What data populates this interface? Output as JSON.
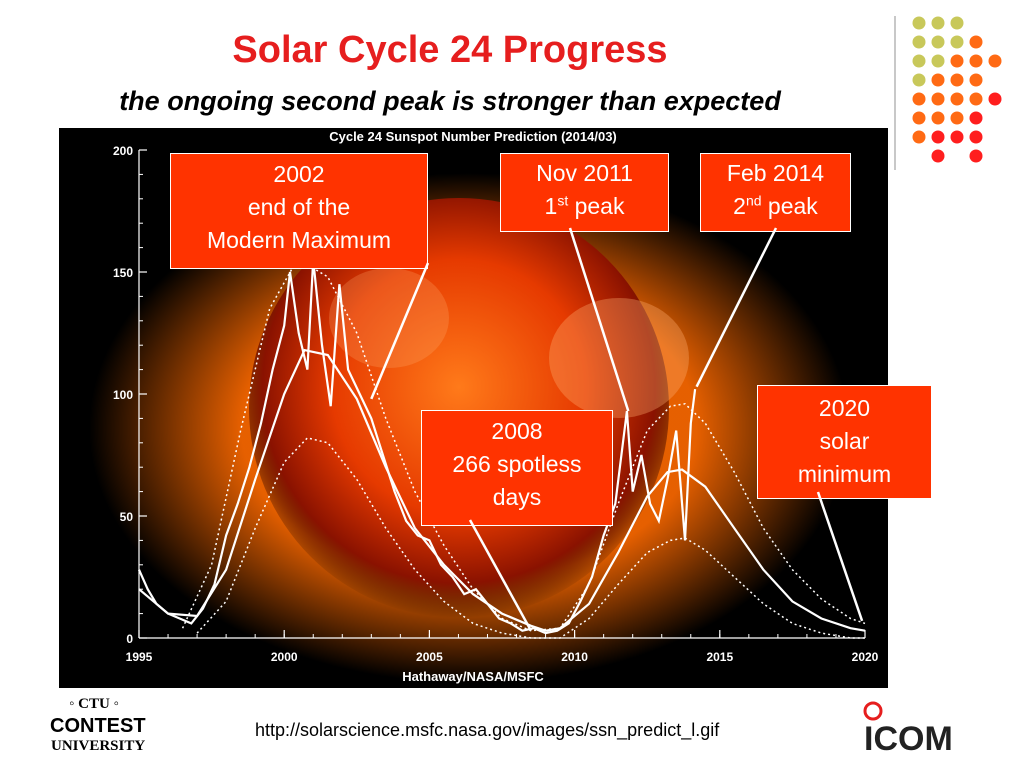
{
  "slide": {
    "title": "Solar Cycle 24 Progress",
    "subtitle": "the ongoing second peak is stronger than expected",
    "source_url": "http://solarscience.msfc.nasa.gov/images/ssn_predict_l.gif"
  },
  "callouts": {
    "c2002": {
      "line1": "2002",
      "line2": "end of the",
      "line3": "Modern Maximum"
    },
    "c2011": {
      "line1": "Nov 2011",
      "line2_pre": "1",
      "line2_sup": "st",
      "line2_post": " peak"
    },
    "c2014": {
      "line1": "Feb 2014",
      "line2_pre": "2",
      "line2_sup": "nd",
      "line2_post": " peak"
    },
    "c2008": {
      "line1": "2008",
      "line2": "266 spotless",
      "line3": "days"
    },
    "c2020": {
      "line1": "2020",
      "line2": "solar",
      "line3": "minimum"
    }
  },
  "logos": {
    "ctu_top": "◦ CTU ◦",
    "ctu_mid": "CONTEST",
    "ctu_bottom": "UNIVERSITY",
    "icom": "ICOM"
  },
  "colors": {
    "title": "#e61e1e",
    "callout": "#ff3300",
    "dot_olive": "#c8c85a",
    "dot_orange": "#ff6a14",
    "dot_red": "#ff1e1e"
  },
  "chart_data": {
    "type": "line",
    "title": "Cycle 24 Sunspot Number Prediction (2014/03)",
    "credit": "Hathaway/NASA/MSFC",
    "xlim": [
      1995,
      2020
    ],
    "ylim": [
      0,
      200
    ],
    "x_ticks": [
      1995,
      2000,
      2005,
      2010,
      2015,
      2020
    ],
    "y_ticks": [
      0,
      50,
      100,
      150,
      200
    ],
    "series": [
      {
        "style": "noisy-solid",
        "x": [
          1995.0,
          1995.3,
          1995.6,
          1996.0,
          1996.4,
          1996.8,
          1997.2,
          1997.6,
          1998.0,
          1998.4,
          1998.8,
          1999.2,
          1999.6,
          2000.0,
          2000.2,
          2000.5,
          2000.8,
          2001.0,
          2001.3,
          2001.6,
          2001.9,
          2002.2,
          2002.6,
          2003.0,
          2003.4,
          2003.8,
          2004.2,
          2004.6,
          2005.0,
          2005.4,
          2005.8,
          2006.2,
          2006.6,
          2007.0,
          2007.4,
          2007.8,
          2008.2,
          2008.6,
          2009.0,
          2009.4,
          2009.8,
          2010.2,
          2010.6,
          2011.0,
          2011.4,
          2011.8,
          2012.0,
          2012.3,
          2012.6,
          2012.9,
          2013.2,
          2013.5,
          2013.8,
          2014.0,
          2014.15
        ],
        "y": [
          28,
          20,
          14,
          10,
          8,
          6,
          12,
          22,
          42,
          55,
          70,
          88,
          110,
          128,
          150,
          125,
          110,
          155,
          120,
          95,
          145,
          110,
          100,
          90,
          75,
          60,
          48,
          42,
          40,
          30,
          25,
          18,
          20,
          14,
          8,
          6,
          3,
          4,
          2,
          3,
          6,
          15,
          25,
          42,
          55,
          93,
          60,
          75,
          55,
          48,
          65,
          85,
          40,
          88,
          102
        ]
      },
      {
        "style": "smooth-solid",
        "x": [
          1995.0,
          1996.0,
          1997.0,
          1998.0,
          1999.0,
          2000.0,
          2000.7,
          2001.5,
          2002.5,
          2003.5,
          2004.5,
          2005.5,
          2006.5,
          2007.5,
          2008.5,
          2009.0,
          2009.5,
          2010.5,
          2011.5,
          2012.5,
          2013.2,
          2013.7,
          2014.5,
          2015.5,
          2016.5,
          2017.5,
          2018.5,
          2019.5,
          2020.0
        ],
        "y": [
          20,
          10,
          9,
          28,
          65,
          100,
          118,
          116,
          98,
          70,
          45,
          30,
          18,
          10,
          5,
          3,
          4,
          14,
          35,
          58,
          68,
          69,
          62,
          45,
          28,
          15,
          8,
          4,
          3
        ]
      },
      {
        "style": "dotted-upper",
        "x": [
          1996.5,
          1997.5,
          1998.5,
          1999.5,
          2000.3,
          2000.8,
          2001.5,
          2002.5,
          2003.5,
          2004.5,
          2005.5,
          2006.5,
          2007.5,
          2008.5,
          2009.5,
          2010.5,
          2011.5,
          2012.5,
          2013.3,
          2013.8,
          2014.5,
          2015.5,
          2016.5,
          2017.5,
          2018.5,
          2019.5,
          2020.0
        ],
        "y": [
          4,
          30,
          85,
          135,
          152,
          153,
          148,
          125,
          90,
          60,
          38,
          20,
          8,
          3,
          4,
          22,
          55,
          85,
          95,
          96,
          88,
          68,
          45,
          28,
          16,
          8,
          6
        ]
      },
      {
        "style": "dotted-lower",
        "x": [
          1997.0,
          1998.0,
          1999.0,
          2000.0,
          2000.8,
          2001.5,
          2002.5,
          2003.5,
          2004.5,
          2005.5,
          2006.5,
          2007.5,
          2008.5,
          2009.5,
          2010.5,
          2011.5,
          2012.5,
          2013.3,
          2013.8,
          2014.5,
          2015.5,
          2016.5,
          2017.5,
          2018.5,
          2019.5,
          2020.0
        ],
        "y": [
          2,
          15,
          45,
          72,
          82,
          80,
          65,
          45,
          28,
          15,
          6,
          2,
          0,
          0,
          8,
          22,
          35,
          40,
          41,
          36,
          25,
          14,
          6,
          2,
          0,
          0
        ]
      }
    ],
    "annotations": [
      {
        "label": "2002 end of the Modern Maximum",
        "target": [
          2003.0,
          98
        ]
      },
      {
        "label": "Nov 2011 1st peak",
        "target": [
          2011.85,
          93
        ]
      },
      {
        "label": "Feb 2014 2nd peak",
        "target": [
          2014.2,
          103
        ]
      },
      {
        "label": "2008 266 spotless days",
        "target": [
          2008.5,
          3
        ]
      },
      {
        "label": "2020 solar minimum",
        "target": [
          2019.9,
          7
        ]
      }
    ]
  }
}
